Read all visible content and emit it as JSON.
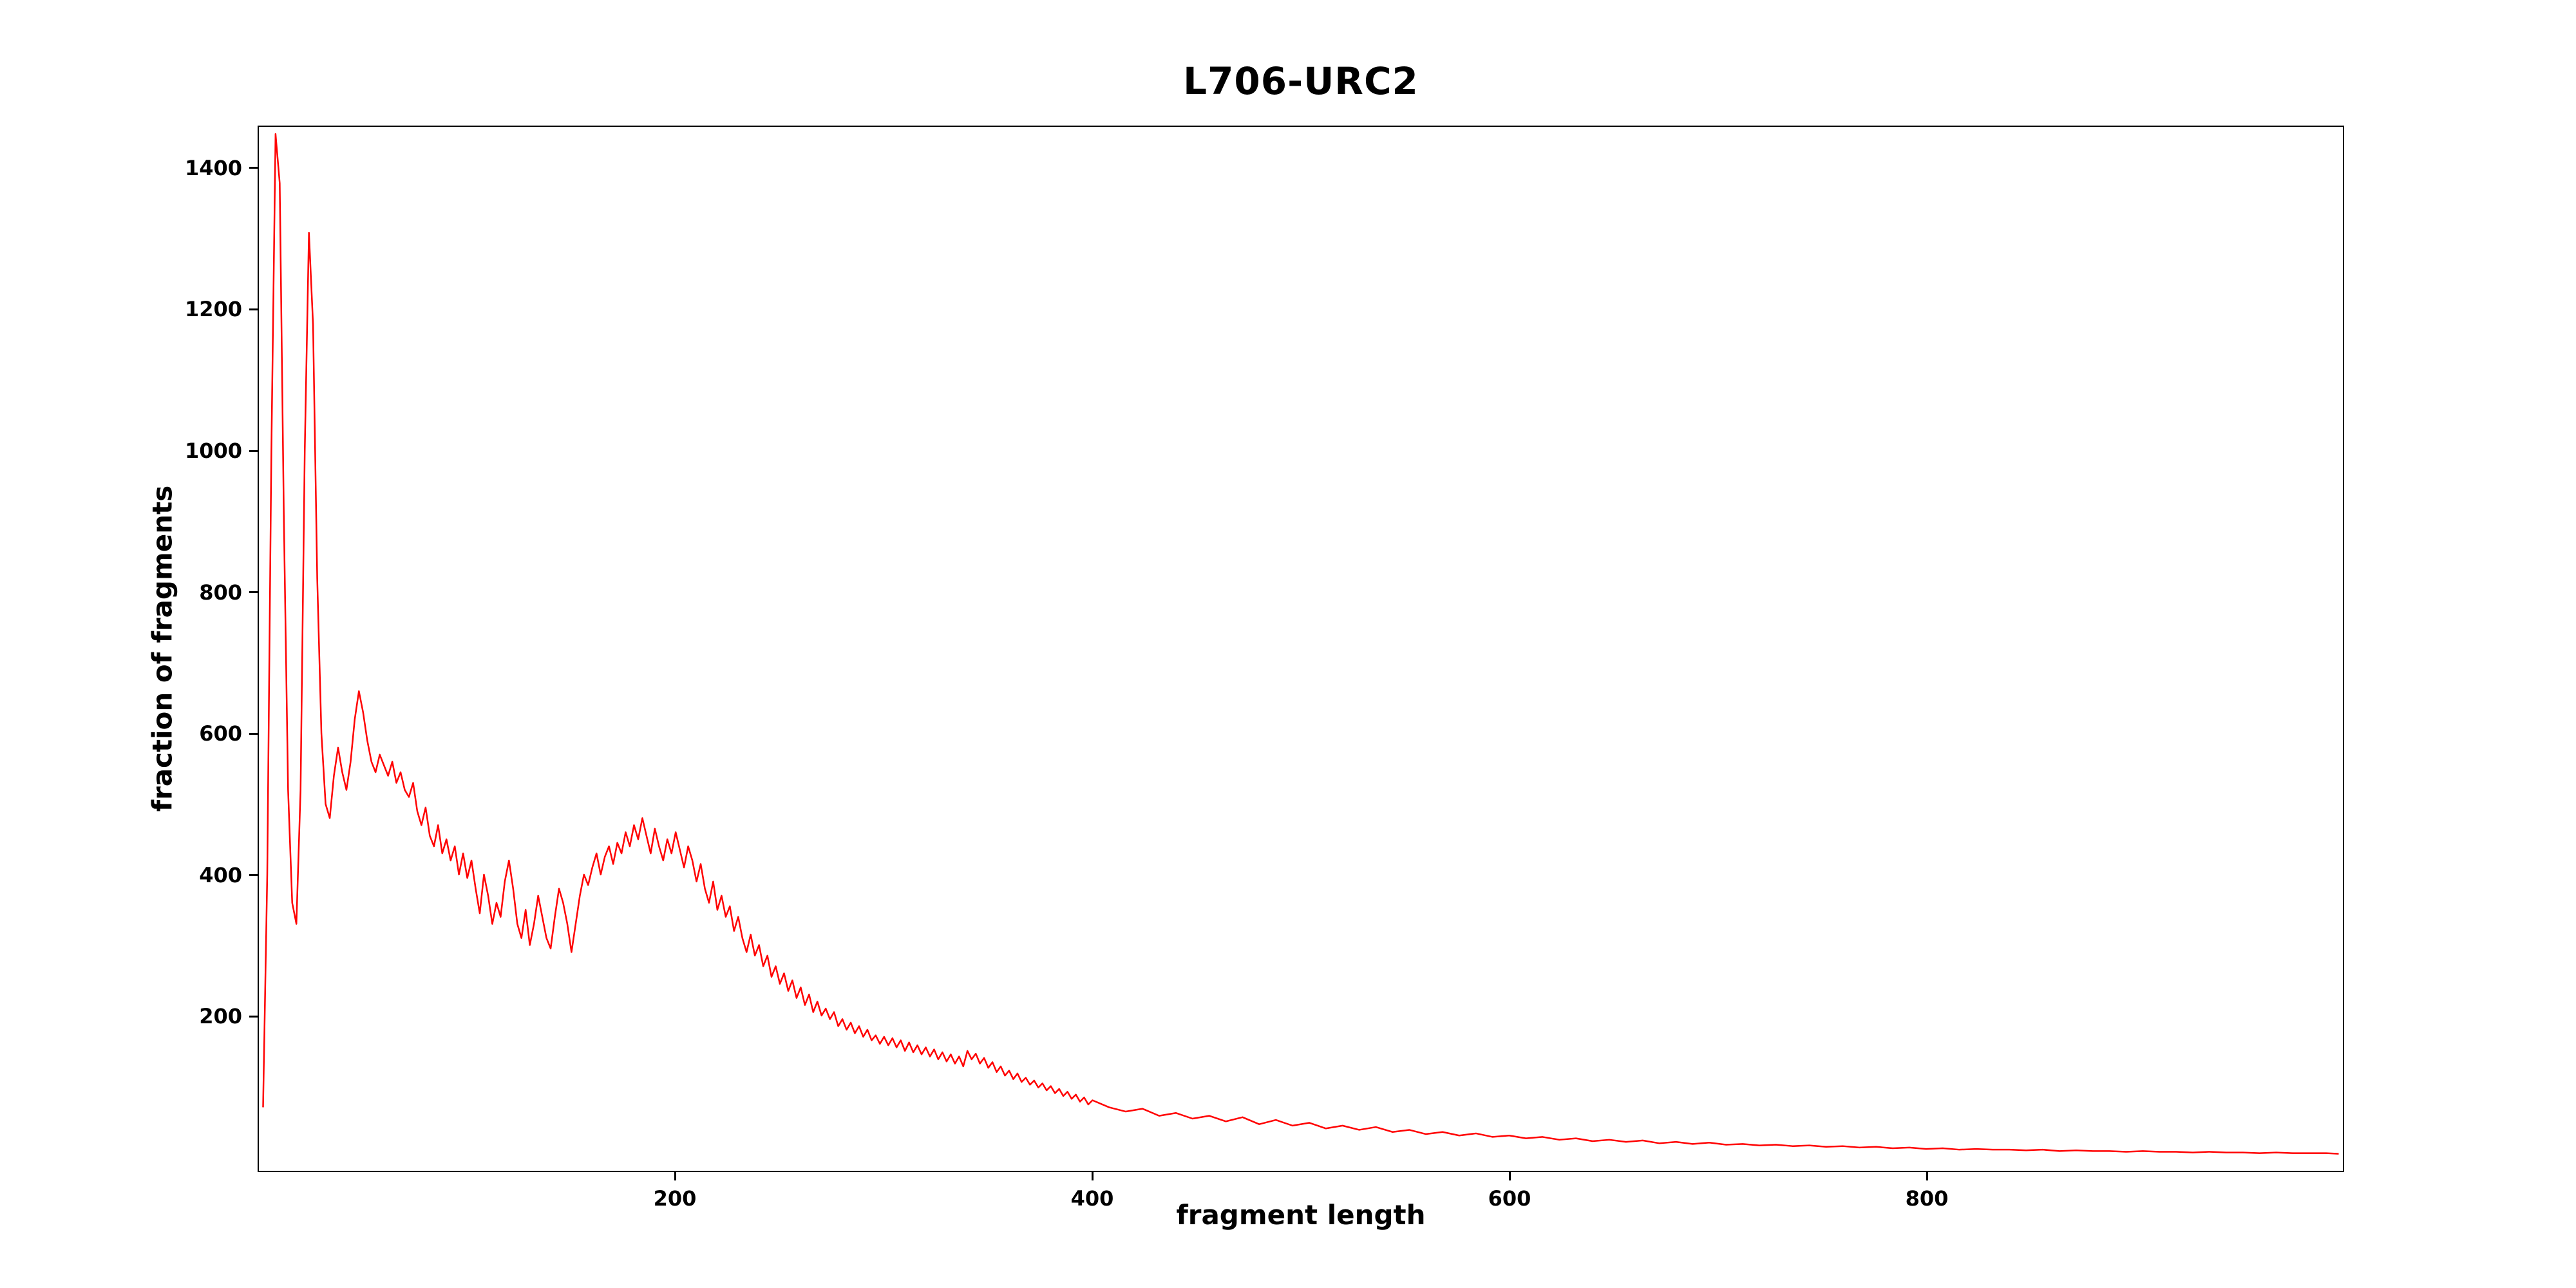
{
  "chart_data": {
    "type": "line",
    "title": "L706-URC2",
    "xlabel": "fragment length",
    "ylabel": "fraction of fragments",
    "line_color": "#ff0000",
    "grid": false,
    "legend": "none",
    "xlim": [
      0,
      1000
    ],
    "ylim": [
      -20,
      1460
    ],
    "xticks": [
      200,
      400,
      600,
      800
    ],
    "yticks": [
      200,
      400,
      600,
      800,
      1000,
      1200,
      1400
    ],
    "x": [
      2,
      4,
      6,
      8,
      10,
      12,
      14,
      16,
      18,
      20,
      22,
      24,
      26,
      28,
      30,
      32,
      34,
      36,
      38,
      40,
      42,
      44,
      46,
      48,
      50,
      52,
      54,
      56,
      58,
      60,
      62,
      64,
      66,
      68,
      70,
      72,
      74,
      76,
      78,
      80,
      82,
      84,
      86,
      88,
      90,
      92,
      94,
      96,
      98,
      100,
      102,
      104,
      106,
      108,
      110,
      112,
      114,
      116,
      118,
      120,
      122,
      124,
      126,
      128,
      130,
      132,
      134,
      136,
      138,
      140,
      142,
      144,
      146,
      148,
      150,
      152,
      154,
      156,
      158,
      160,
      162,
      164,
      166,
      168,
      170,
      172,
      174,
      176,
      178,
      180,
      182,
      184,
      186,
      188,
      190,
      192,
      194,
      196,
      198,
      200,
      202,
      204,
      206,
      208,
      210,
      212,
      214,
      216,
      218,
      220,
      222,
      224,
      226,
      228,
      230,
      232,
      234,
      236,
      238,
      240,
      242,
      244,
      246,
      248,
      250,
      252,
      254,
      256,
      258,
      260,
      262,
      264,
      266,
      268,
      270,
      272,
      274,
      276,
      278,
      280,
      282,
      284,
      286,
      288,
      290,
      292,
      294,
      296,
      298,
      300,
      302,
      304,
      306,
      308,
      310,
      312,
      314,
      316,
      318,
      320,
      322,
      324,
      326,
      328,
      330,
      332,
      334,
      336,
      338,
      340,
      342,
      344,
      346,
      348,
      350,
      352,
      354,
      356,
      358,
      360,
      362,
      364,
      366,
      368,
      370,
      372,
      374,
      376,
      378,
      380,
      382,
      384,
      386,
      388,
      390,
      392,
      394,
      396,
      398,
      400,
      408,
      416,
      424,
      432,
      440,
      448,
      456,
      464,
      472,
      480,
      488,
      496,
      504,
      512,
      520,
      528,
      536,
      544,
      552,
      560,
      568,
      576,
      584,
      592,
      600,
      608,
      616,
      624,
      632,
      640,
      648,
      656,
      664,
      672,
      680,
      688,
      696,
      704,
      712,
      720,
      728,
      736,
      744,
      752,
      760,
      768,
      776,
      784,
      792,
      800,
      808,
      816,
      824,
      832,
      840,
      848,
      856,
      864,
      872,
      880,
      888,
      896,
      904,
      912,
      920,
      928,
      936,
      944,
      952,
      960,
      968,
      976,
      984,
      992,
      998
    ],
    "y": [
      70,
      400,
      1000,
      1450,
      1380,
      900,
      520,
      360,
      330,
      520,
      1000,
      1310,
      1180,
      820,
      600,
      500,
      480,
      540,
      580,
      545,
      520,
      560,
      620,
      660,
      630,
      590,
      560,
      545,
      570,
      555,
      540,
      560,
      530,
      545,
      520,
      510,
      530,
      490,
      470,
      495,
      455,
      440,
      470,
      430,
      450,
      420,
      440,
      400,
      430,
      395,
      420,
      380,
      345,
      400,
      370,
      330,
      360,
      340,
      390,
      420,
      380,
      330,
      310,
      350,
      300,
      330,
      370,
      340,
      310,
      295,
      340,
      380,
      360,
      330,
      290,
      330,
      370,
      400,
      385,
      410,
      430,
      400,
      425,
      440,
      415,
      445,
      430,
      460,
      440,
      470,
      450,
      480,
      455,
      430,
      465,
      440,
      420,
      450,
      430,
      460,
      435,
      410,
      440,
      420,
      390,
      415,
      380,
      360,
      390,
      350,
      370,
      340,
      355,
      320,
      340,
      310,
      290,
      315,
      285,
      300,
      270,
      285,
      255,
      270,
      245,
      260,
      235,
      250,
      225,
      240,
      215,
      230,
      205,
      220,
      200,
      210,
      195,
      205,
      185,
      195,
      180,
      190,
      175,
      185,
      170,
      180,
      165,
      172,
      160,
      170,
      158,
      168,
      155,
      165,
      150,
      162,
      148,
      158,
      145,
      155,
      142,
      152,
      138,
      148,
      135,
      145,
      132,
      142,
      128,
      150,
      138,
      146,
      132,
      140,
      126,
      134,
      120,
      128,
      115,
      122,
      110,
      118,
      106,
      112,
      102,
      108,
      98,
      104,
      94,
      100,
      90,
      96,
      86,
      92,
      82,
      88,
      78,
      84,
      74,
      80,
      70,
      64,
      68,
      58,
      62,
      54,
      58,
      50,
      56,
      46,
      52,
      44,
      48,
      40,
      44,
      38,
      42,
      35,
      38,
      32,
      35,
      30,
      33,
      28,
      30,
      26,
      28,
      24,
      26,
      22,
      24,
      21,
      23,
      19,
      21,
      18,
      20,
      17,
      18,
      16,
      17,
      15,
      16,
      14,
      15,
      13,
      14,
      12,
      13,
      11,
      12,
      10,
      11,
      10,
      10,
      9,
      10,
      8,
      9,
      8,
      8,
      7,
      8,
      7,
      7,
      6,
      7,
      6,
      6,
      5,
      6,
      5,
      5,
      5,
      4
    ]
  }
}
